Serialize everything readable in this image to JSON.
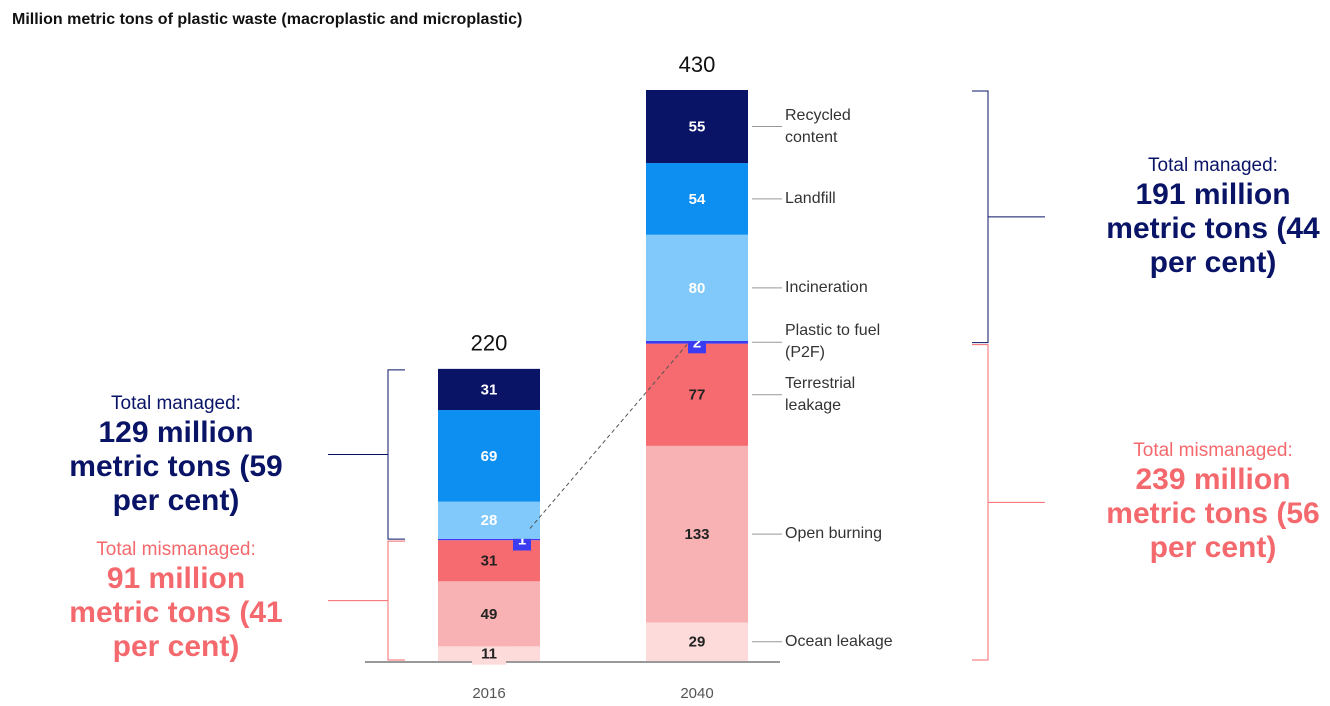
{
  "chart_data": {
    "type": "stacked_bar",
    "title": "Million metric tons of plastic waste (macroplastic and microplastic)",
    "categories": [
      "2016",
      "2040"
    ],
    "totals": [
      220,
      430
    ],
    "series": [
      {
        "name": "Ocean leakage",
        "color": "#fddbdb",
        "values": [
          11,
          29
        ]
      },
      {
        "name": "Open burning",
        "color": "#f9b2b4",
        "values": [
          49,
          133
        ]
      },
      {
        "name": "Terrestrial leakage",
        "color": "#f56b6f",
        "values": [
          31,
          77
        ]
      },
      {
        "name": "Plastic to fuel (P2F)",
        "color": "#3b3bf2",
        "values": [
          1,
          2
        ]
      },
      {
        "name": "Incineration",
        "color": "#81c9fb",
        "values": [
          28,
          80
        ]
      },
      {
        "name": "Landfill",
        "color": "#0d8ff1",
        "values": [
          69,
          54
        ]
      },
      {
        "name": "Recycled content",
        "color": "#0a1467",
        "values": [
          31,
          55
        ]
      }
    ],
    "annotations": [
      {
        "label": "Total managed:",
        "text": "129 million metric tons (59 per cent)",
        "color": "#0a1467"
      },
      {
        "label": "Total mismanaged:",
        "text": "91 million metric tons (41 per cent)",
        "color": "#f4696d"
      },
      {
        "label": "Total managed:",
        "text": "191 million metric tons (44 per cent)",
        "color": "#0a1467"
      },
      {
        "label": "Total mismanaged:",
        "text": "239 million metric tons (56 per cent)",
        "color": "#f4696d"
      }
    ]
  }
}
